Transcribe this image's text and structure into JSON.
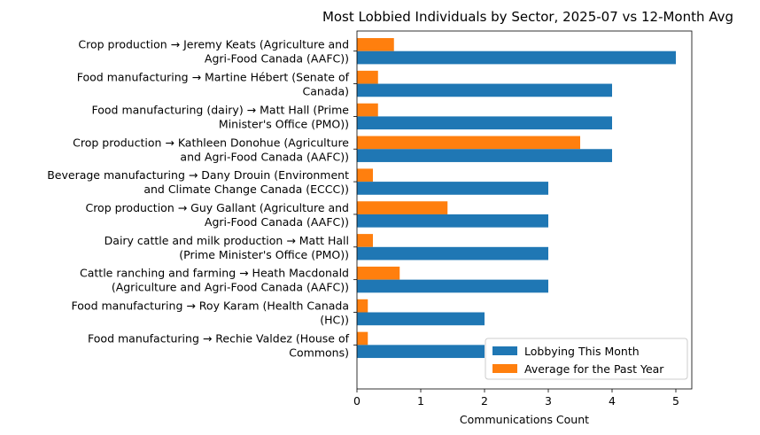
{
  "chart_data": {
    "type": "bar",
    "orientation": "horizontal",
    "title": "Most Lobbied Individuals by Sector, 2025-07 vs 12-Month Avg",
    "xlabel": "Communications Count",
    "ylabel": "",
    "xlim": [
      0,
      5.25
    ],
    "xticks": [
      "0",
      "1",
      "2",
      "3",
      "4",
      "5"
    ],
    "grid": false,
    "legend_position": "lower-right",
    "categories": [
      [
        "Crop production → Jeremy Keats (Agriculture and",
        "Agri-Food Canada (AAFC))"
      ],
      [
        "Food manufacturing → Martine Hébert (Senate of",
        "Canada)"
      ],
      [
        "Food manufacturing (dairy) → Matt Hall (Prime",
        "Minister's Office (PMO))"
      ],
      [
        "Crop production → Kathleen Donohue (Agriculture",
        "and Agri-Food Canada (AAFC))"
      ],
      [
        "Beverage manufacturing  → Dany Drouin (Environment",
        "and Climate Change Canada (ECCC))"
      ],
      [
        "Crop production → Guy Gallant (Agriculture and",
        "Agri-Food Canada (AAFC))"
      ],
      [
        "Dairy cattle and milk production → Matt Hall",
        "(Prime Minister's Office (PMO))"
      ],
      [
        "Cattle ranching and farming → Heath Macdonald",
        "(Agriculture and Agri-Food Canada (AAFC))"
      ],
      [
        "Food manufacturing → Roy Karam (Health Canada",
        "(HC))"
      ],
      [
        "Food manufacturing → Rechie Valdez (House of",
        "Commons)"
      ]
    ],
    "series": [
      {
        "name": "Lobbying This Month",
        "color": "#1f77b4",
        "values": [
          5,
          4,
          4,
          4,
          3,
          3,
          3,
          3,
          2,
          2
        ]
      },
      {
        "name": "Average for the Past Year",
        "color": "#ff7f0e",
        "values": [
          0.58,
          0.33,
          0.33,
          3.5,
          0.25,
          1.42,
          0.25,
          0.67,
          0.17,
          0.17
        ]
      }
    ]
  }
}
